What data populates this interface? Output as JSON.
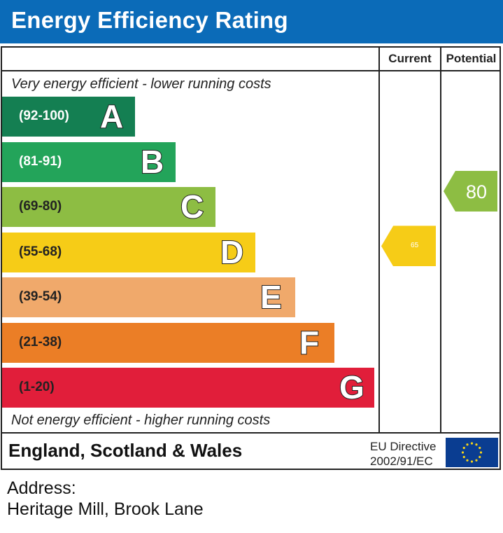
{
  "header": {
    "title": "Energy Efficiency Rating",
    "bg_color": "#0b6bb8"
  },
  "columns": {
    "current": "Current",
    "potential": "Potential"
  },
  "captions": {
    "top": "Very energy efficient - lower running costs",
    "bottom": "Not energy efficient - higher running costs"
  },
  "chart_data": {
    "type": "bar",
    "categories": [
      "A",
      "B",
      "C",
      "D",
      "E",
      "F",
      "G"
    ],
    "bands": [
      {
        "letter": "A",
        "range": "(92-100)",
        "color": "#147f52"
      },
      {
        "letter": "B",
        "range": "(81-91)",
        "color": "#23a45a"
      },
      {
        "letter": "C",
        "range": "(69-80)",
        "color": "#8dbd43"
      },
      {
        "letter": "D",
        "range": "(55-68)",
        "color": "#f6cc17"
      },
      {
        "letter": "E",
        "range": "(39-54)",
        "color": "#f0a96b"
      },
      {
        "letter": "F",
        "range": "(21-38)",
        "color": "#eb7e26"
      },
      {
        "letter": "G",
        "range": "(1-20)",
        "color": "#e11e3a"
      }
    ],
    "current": {
      "value": 65,
      "label": "65",
      "band": "D",
      "color": "#f6cc17"
    },
    "potential": {
      "value": 80,
      "label": "80",
      "band": "C",
      "color": "#8dbd43"
    }
  },
  "footer": {
    "region": "England, Scotland & Wales",
    "directive_line1": "EU Directive",
    "directive_line2": "2002/91/EC"
  },
  "address": {
    "label": "Address:",
    "value": "Heritage Mill, Brook Lane"
  }
}
